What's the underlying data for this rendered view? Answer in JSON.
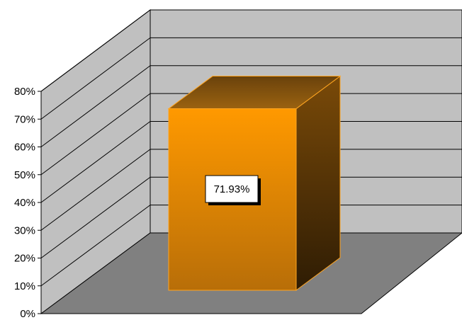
{
  "chart_data": {
    "type": "bar",
    "three_d": true,
    "categories": [
      ""
    ],
    "values": [
      71.93
    ],
    "value_unit": "%",
    "data_labels": [
      "71.93%"
    ],
    "ylim": [
      0,
      80
    ],
    "yticks": [
      0,
      10,
      20,
      30,
      40,
      50,
      60,
      70,
      80
    ],
    "ytick_labels": [
      "0%",
      "10%",
      "20%",
      "30%",
      "40%",
      "50%",
      "60%",
      "70%",
      "80%"
    ],
    "title": "",
    "xlabel": "",
    "ylabel": "",
    "grid": true,
    "legend": "none",
    "colors": {
      "bar_front_top": "#FF9900",
      "bar_front_bottom": "#B86E08",
      "bar_side_top": "#7A4A08",
      "bar_side_bottom": "#2E1C04",
      "bar_top_light": "#9A6210",
      "bar_top_dark": "#6A420C",
      "bar_edge": "#FFA521",
      "back_wall": "#C0C0C0",
      "side_wall": "#C0C0C0",
      "floor": "#808080",
      "grid": "#000000"
    }
  }
}
